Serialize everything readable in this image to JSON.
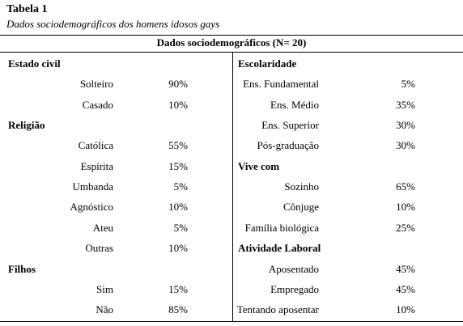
{
  "header": {
    "title": "Tabela 1",
    "subtitle": "Dados sociodemográficos dos homens idosos gays"
  },
  "table": {
    "caption": "Dados sociodemográficos (N= 20)",
    "columns": [
      {
        "sections": [
          {
            "title": "Estado civil",
            "rows": [
              [
                "Solteiro",
                "90%"
              ],
              [
                "Casado",
                "10%"
              ]
            ]
          },
          {
            "title": "Religião",
            "rows": [
              [
                "Católica",
                "55%"
              ],
              [
                "Espírita",
                "15%"
              ],
              [
                "Umbanda",
                "5%"
              ],
              [
                "Agnóstico",
                "10%"
              ],
              [
                "Ateu",
                "5%"
              ],
              [
                "Outras",
                "10%"
              ]
            ]
          },
          {
            "title": "Filhos",
            "rows": [
              [
                "Sim",
                "15%"
              ],
              [
                "Não",
                "85%"
              ]
            ]
          }
        ]
      },
      {
        "sections": [
          {
            "title": "Escolaridade",
            "rows": [
              [
                "Ens. Fundamental",
                "5%"
              ],
              [
                "Ens. Médio",
                "35%"
              ],
              [
                "Ens. Superior",
                "30%"
              ],
              [
                "Pós-graduação",
                "30%"
              ]
            ]
          },
          {
            "title": "Vive com",
            "rows": [
              [
                "Sozinho",
                "65%"
              ],
              [
                "Cônjuge",
                "10%"
              ],
              [
                "Família biológica",
                "25%"
              ]
            ]
          },
          {
            "title": "Atividade Laboral",
            "rows": [
              [
                "Aposentado",
                "45%"
              ],
              [
                "Empregado",
                "45%"
              ],
              [
                "Tentando aposentar",
                "10%"
              ]
            ]
          }
        ]
      }
    ]
  }
}
